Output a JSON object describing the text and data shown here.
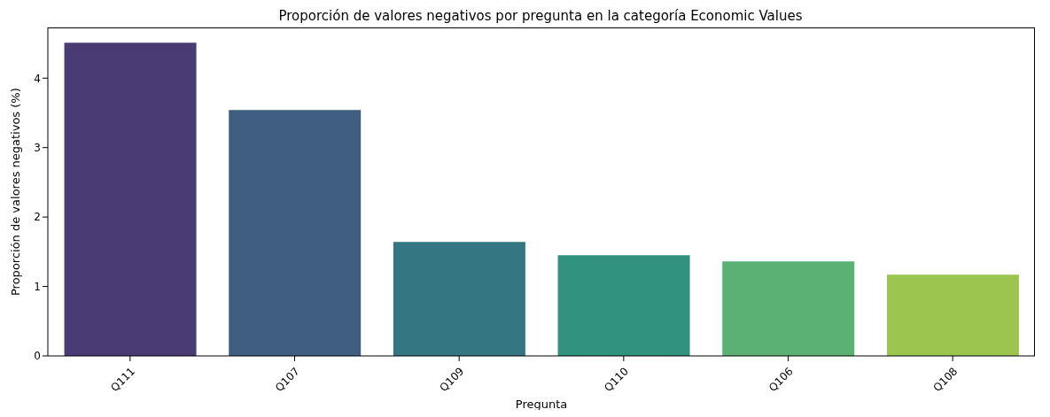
{
  "chart_data": {
    "type": "bar",
    "title": "Proporción de valores negativos por pregunta en la categoría Economic Values",
    "xlabel": "Pregunta",
    "ylabel": "Proporción de valores negativos (%)",
    "categories": [
      "Q111",
      "Q107",
      "Q109",
      "Q110",
      "Q106",
      "Q108"
    ],
    "values": [
      4.51,
      3.54,
      1.64,
      1.45,
      1.36,
      1.17
    ],
    "colors": [
      "#4b3b75",
      "#3f5e80",
      "#347782",
      "#31937f",
      "#5ab173",
      "#9cc54f"
    ],
    "ylim": [
      0,
      4.73
    ],
    "yticks": [
      0,
      1,
      2,
      3,
      4
    ],
    "grid": false,
    "legend": false
  }
}
